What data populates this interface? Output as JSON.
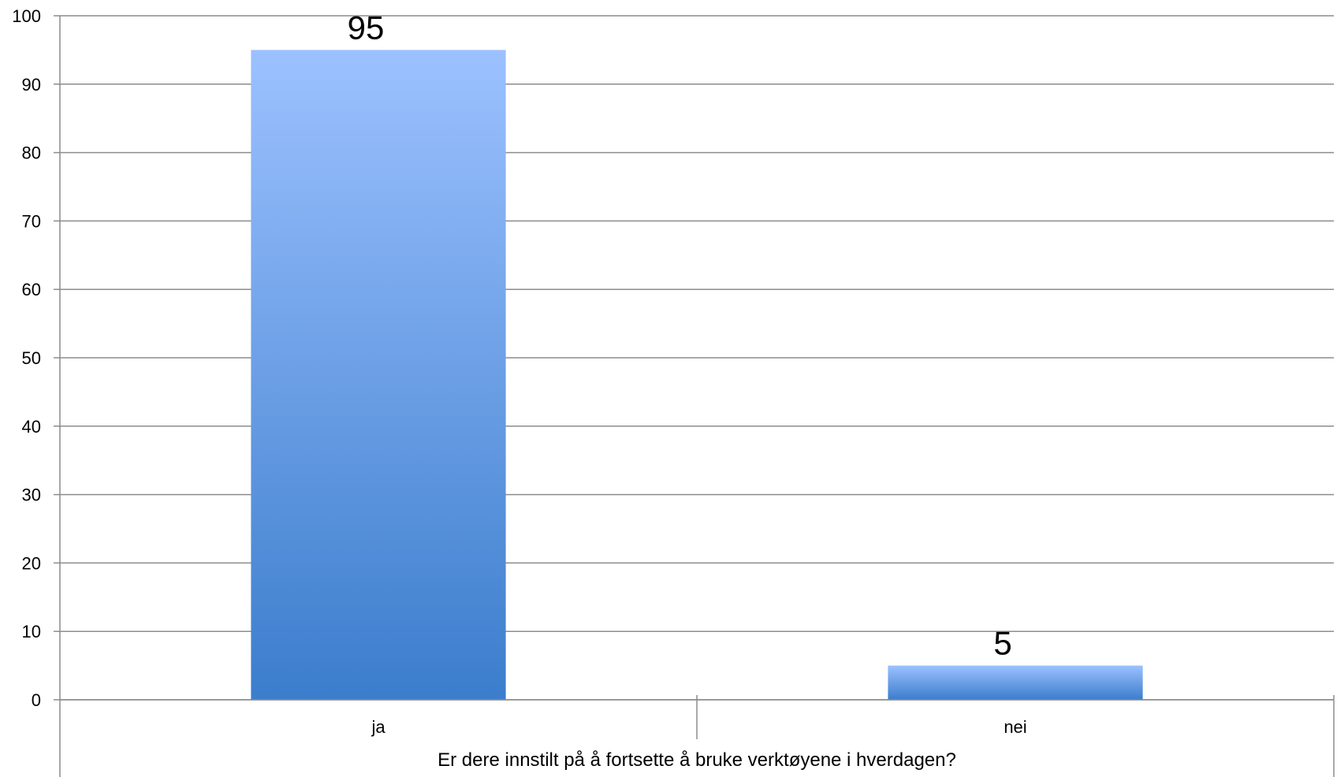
{
  "chart_data": {
    "type": "bar",
    "categories": [
      "ja",
      "nei"
    ],
    "values": [
      95,
      5
    ],
    "data_labels": [
      "95",
      "5"
    ],
    "xlabel": "Er dere innstilt på å fortsette å bruke verktøyene i hverdagen?",
    "ylabel": "",
    "ylim": [
      0,
      100
    ],
    "y_ticks": [
      0,
      10,
      20,
      30,
      40,
      50,
      60,
      70,
      80,
      90,
      100
    ],
    "grid": true,
    "legend": "none",
    "colors": {
      "bar_top": "#9cc1ff",
      "bar_bottom": "#3b7dcc",
      "grid": "#8c8c8c",
      "axis": "#8c8c8c"
    }
  }
}
